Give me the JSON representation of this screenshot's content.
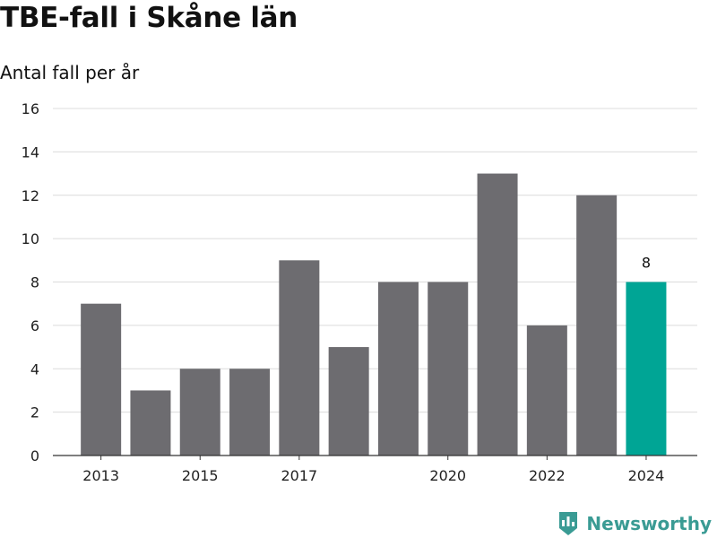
{
  "header": {
    "title": "TBE-fall i Skåne län",
    "subtitle": "Antal fall per år"
  },
  "brand": {
    "name": "Newsworthy",
    "color": "#3a9b94",
    "icon": "newsworthy-logo-icon"
  },
  "chart_data": {
    "type": "bar",
    "title": "TBE-fall i Skåne län",
    "subtitle": "Antal fall per år",
    "xlabel": "",
    "ylabel": "",
    "categories": [
      "2013",
      "2014",
      "2015",
      "2016",
      "2017",
      "2018",
      "2019",
      "2020",
      "2021",
      "2022",
      "2023",
      "2024"
    ],
    "values": [
      7,
      3,
      4,
      4,
      9,
      5,
      8,
      8,
      13,
      6,
      12,
      8
    ],
    "x_tick_labels": [
      "2013",
      "2015",
      "2017",
      "2020",
      "2022",
      "2024"
    ],
    "ylim": [
      0,
      16
    ],
    "y_ticks": [
      0,
      2,
      4,
      6,
      8,
      10,
      12,
      14,
      16
    ],
    "grid": true,
    "bar_color": "#6d6c70",
    "highlight_color": "#00a595",
    "highlight_category": "2024",
    "data_labels": [
      {
        "category": "2024",
        "text": "8"
      }
    ]
  }
}
